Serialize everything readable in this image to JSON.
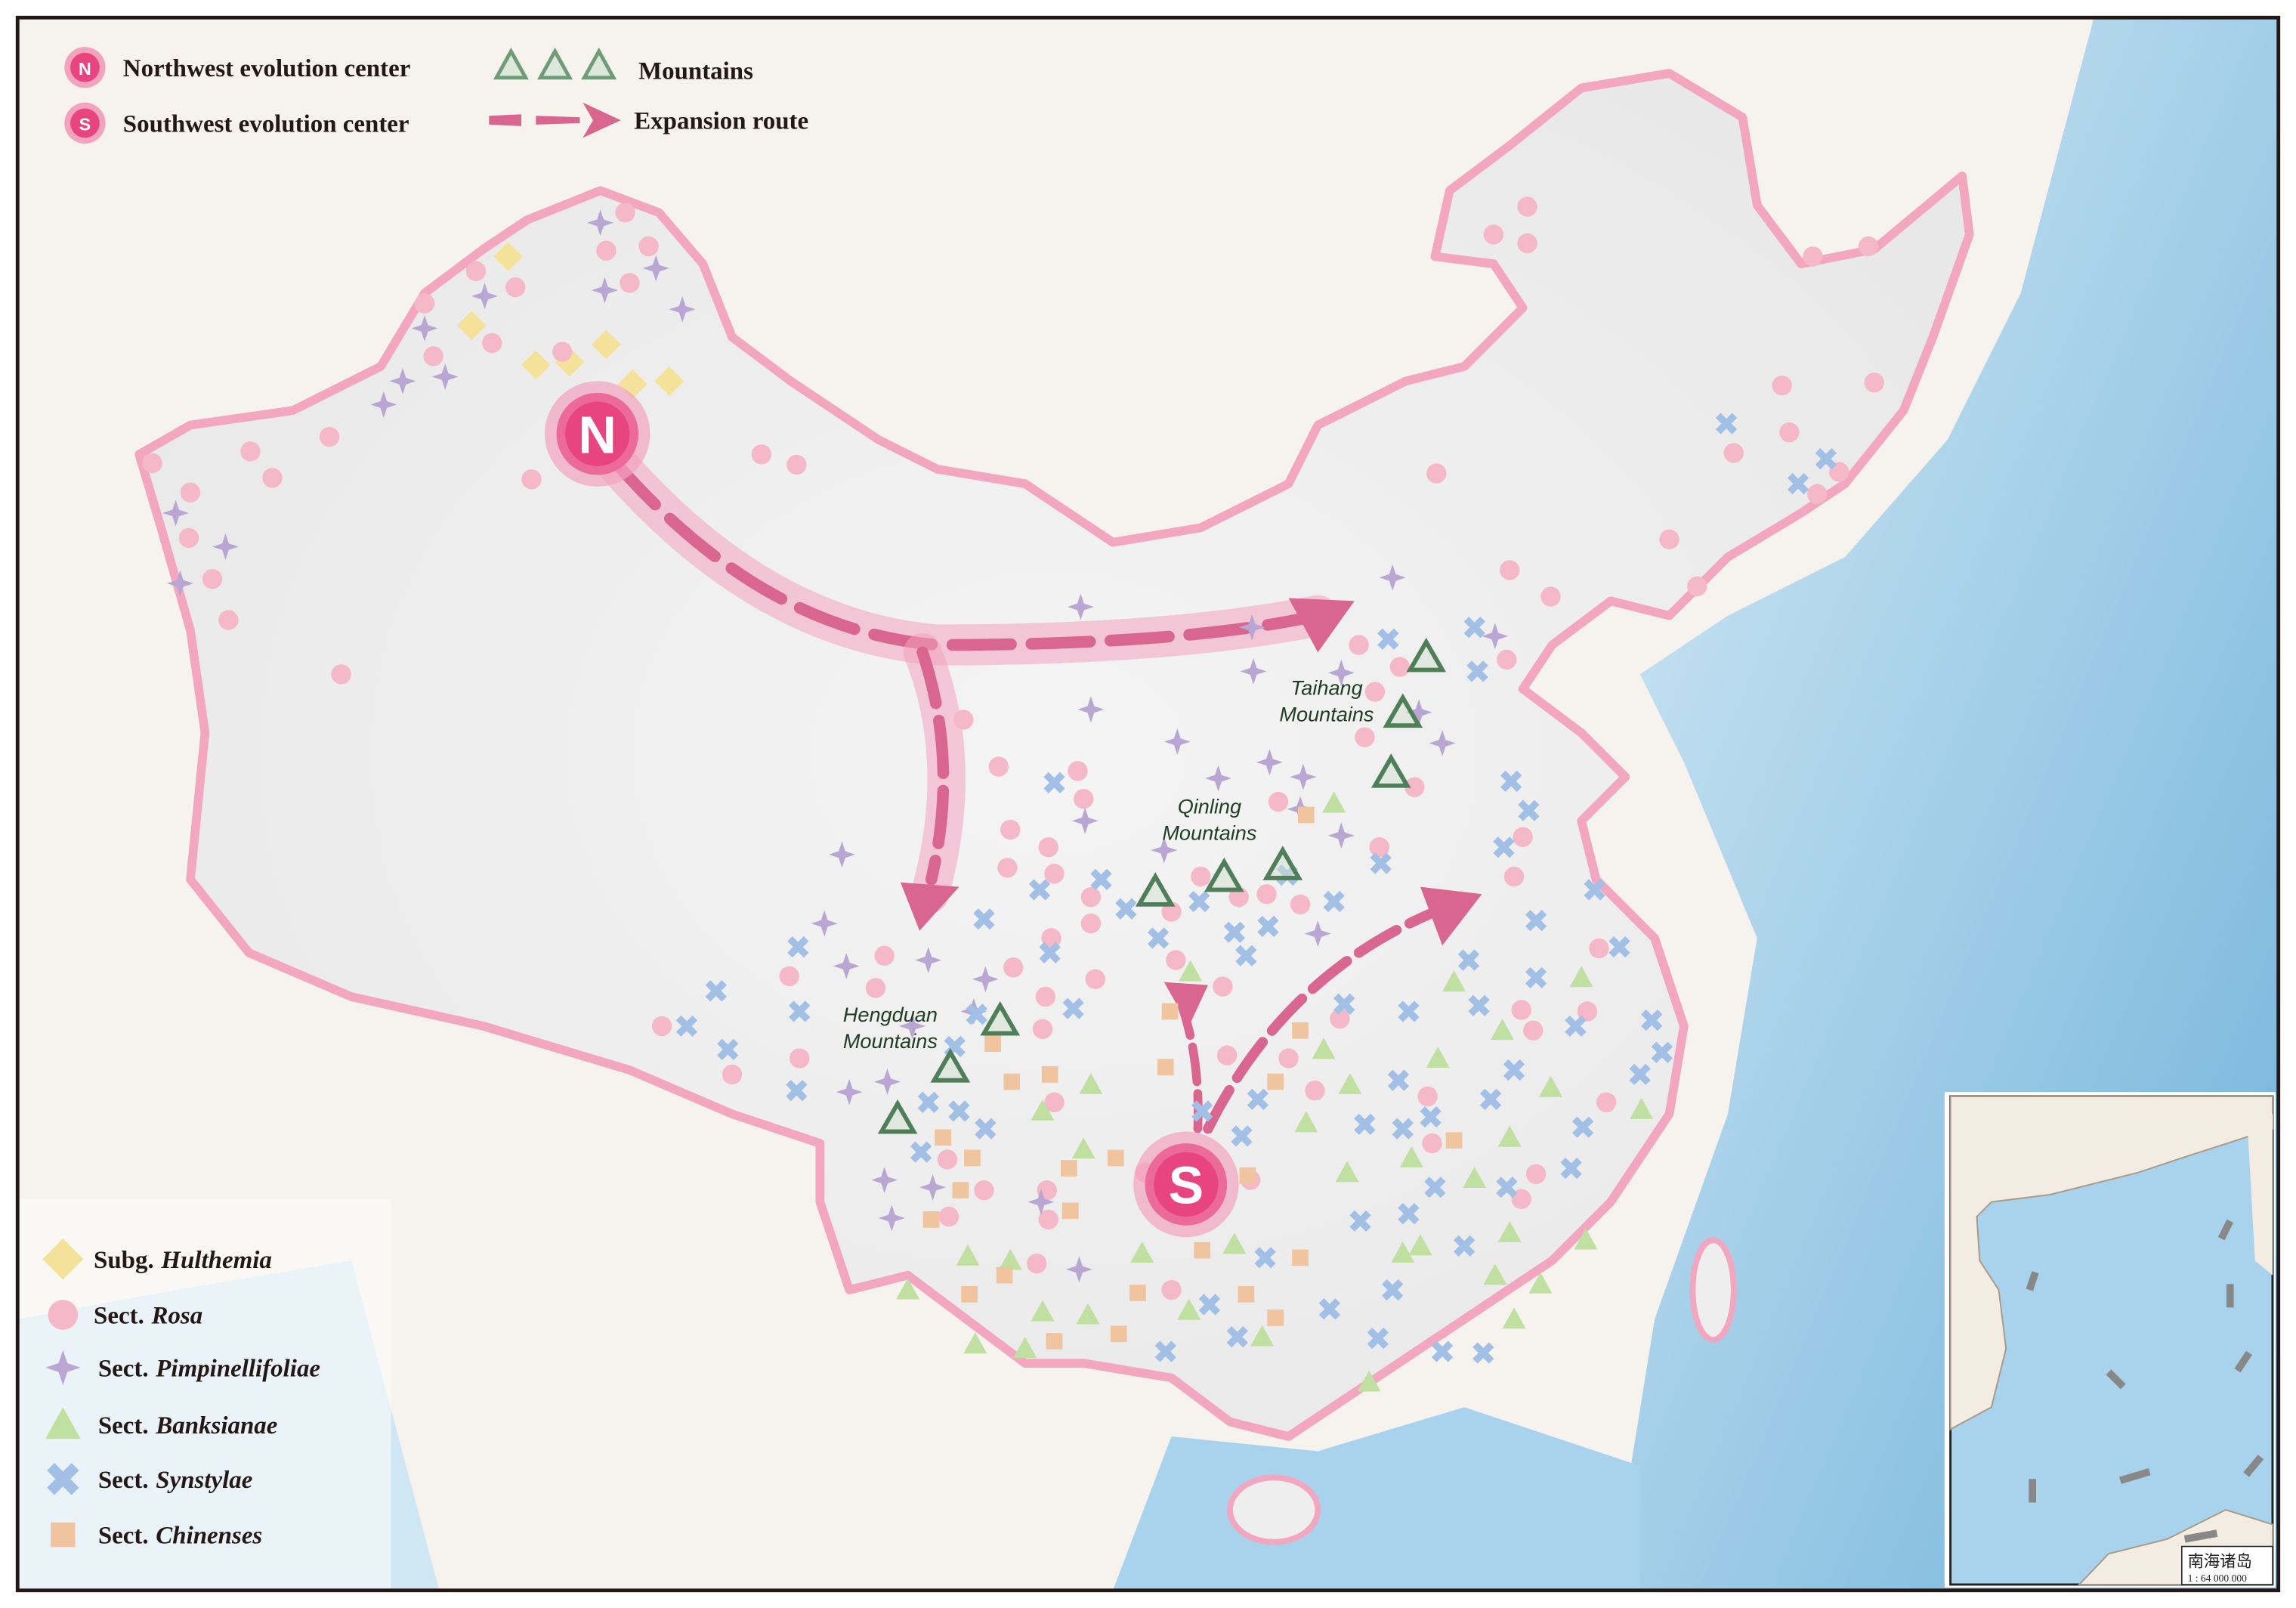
{
  "legend_top": {
    "northwest_center": {
      "letter": "N",
      "label": "Northwest evolution center"
    },
    "southwest_center": {
      "letter": "S",
      "label": "Southwest evolution center"
    },
    "mountains": "Mountains",
    "expansion_route": "Expansion route"
  },
  "legend_taxa": [
    {
      "prefix": "Subg.",
      "name": "Hulthemia",
      "symbol": "diamond-icon",
      "color": "#f5e29a"
    },
    {
      "prefix": "Sect.",
      "name": "Rosa",
      "symbol": "circle-icon",
      "color": "#f5b8c8"
    },
    {
      "prefix": "Sect.",
      "name": "Pimpinellifoliae",
      "symbol": "four-point-star-icon",
      "color": "#b9a6d2"
    },
    {
      "prefix": "Sect.",
      "name": "Banksianae",
      "symbol": "triangle-icon",
      "color": "#bfe0a0"
    },
    {
      "prefix": "Sect.",
      "name": "Synstylae",
      "symbol": "cross-icon",
      "color": "#a2c0e6"
    },
    {
      "prefix": "Sect.",
      "name": "Chinenses",
      "symbol": "square-icon",
      "color": "#f1c4a0"
    }
  ],
  "centers": {
    "north": "N",
    "south": "S"
  },
  "mountain_labels": [
    {
      "line1": "Taihang",
      "line2": "Mountains"
    },
    {
      "line1": "Qinling",
      "line2": "Mountains"
    },
    {
      "line1": "Hengduan",
      "line2": "Mountains"
    }
  ],
  "inset": {
    "title": "南海诸岛",
    "scale": "1 : 64 000 000"
  },
  "colors": {
    "center": "#e8457f",
    "route": "#d9668f",
    "mountain": "#6f9c77",
    "sea": "#9fcde8",
    "land": "#f7f3ee",
    "china_border": "#f2a6bf"
  }
}
